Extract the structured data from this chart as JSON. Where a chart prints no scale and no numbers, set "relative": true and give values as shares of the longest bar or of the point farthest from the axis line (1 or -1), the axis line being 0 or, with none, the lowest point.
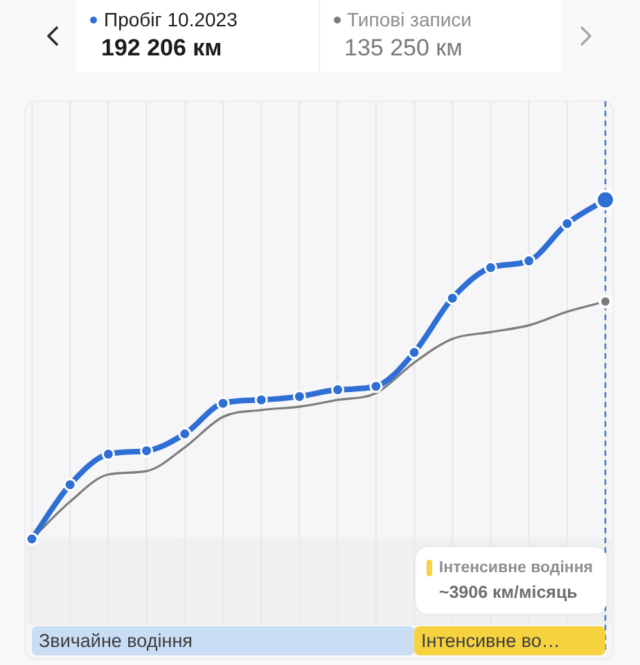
{
  "chart_data": {
    "type": "line",
    "relative": true,
    "categories": [
      null,
      null,
      null,
      null,
      null,
      null,
      null,
      null,
      null,
      null,
      null,
      null,
      null,
      null,
      null,
      null
    ],
    "series": [
      {
        "name": "Пробіг 10.2023",
        "color": "#2f6fd5",
        "marker": "circle",
        "values": [
          0,
          0.16,
          0.25,
          0.26,
          0.31,
          0.4,
          0.41,
          0.42,
          0.44,
          0.45,
          0.55,
          0.71,
          0.8,
          0.82,
          0.93,
          1
        ]
      },
      {
        "name": "Типові записи",
        "color": "#7c7c7c",
        "marker": "none",
        "values": [
          0,
          0.11,
          0.19,
          0.2,
          0.27,
          0.36,
          0.38,
          0.39,
          0.41,
          0.43,
          0.52,
          0.59,
          0.61,
          0.63,
          0.67,
          0.7
        ]
      }
    ],
    "grid": "x",
    "legend": "top",
    "annotations": [
      "192 206 км",
      "135 250 км",
      "Інтенсивне водіння",
      "~3906 км/місяць",
      "Звичайне водіння",
      "Інтенсивне во…"
    ]
  }
}
